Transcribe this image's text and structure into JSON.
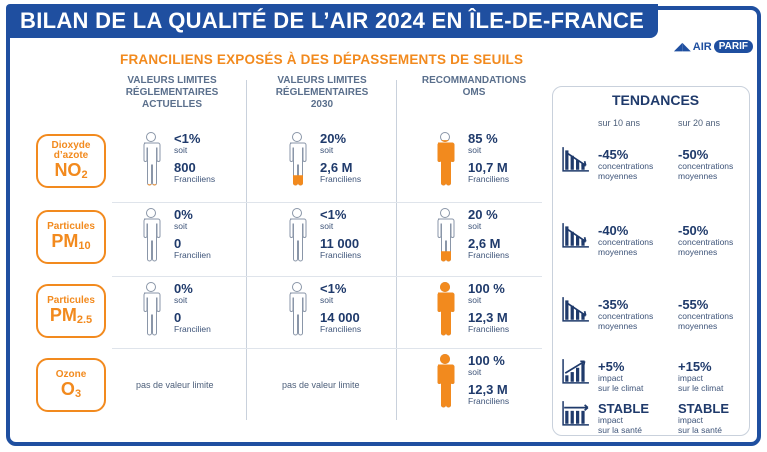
{
  "title": "BILAN DE LA QUALITÉ DE L’AIR 2024 EN ÎLE-DE-FRANCE",
  "logo": {
    "left": "AIR",
    "right": "PARIF"
  },
  "subtitle": "FRANCILIENS EXPOSÉS À DES DÉPASSEMENTS DE SEUILS",
  "columns": [
    {
      "line1": "VALEURS LIMITES",
      "line2": "RÉGLEMENTAIRES",
      "line3": "ACTUELLES"
    },
    {
      "line1": "VALEURS LIMITES",
      "line2": "RÉGLEMENTAIRES",
      "line3": "2030"
    },
    {
      "line1": "RECOMMANDATIONS",
      "line2": "OMS",
      "line3": ""
    }
  ],
  "pollutants": [
    {
      "small1": "Dioxyde",
      "small2": "d’azote",
      "big": "NO",
      "sub": "2"
    },
    {
      "small1": "Particules",
      "small2": "",
      "big": "PM",
      "sub": "10"
    },
    {
      "small1": "Particules",
      "small2": "",
      "big": "PM",
      "sub": "2.5"
    },
    {
      "small1": "Ozone",
      "small2": "",
      "big": "O",
      "sub": "3"
    }
  ],
  "cells": [
    [
      {
        "pct": "<1%",
        "soit": "soit",
        "num": "800",
        "lab": "Franciliens",
        "fill": 0.03
      },
      {
        "pct": "20%",
        "soit": "soit",
        "num": "2,6 M",
        "lab": "Franciliens",
        "fill": 0.2
      },
      {
        "pct": "85 %",
        "soit": "soit",
        "num": "10,7 M",
        "lab": "Franciliens",
        "fill": 0.85
      }
    ],
    [
      {
        "pct": "0%",
        "soit": "soit",
        "num": "0",
        "lab": "Francilien",
        "fill": 0
      },
      {
        "pct": "<1%",
        "soit": "soit",
        "num": "11 000",
        "lab": "Franciliens",
        "fill": 0.01
      },
      {
        "pct": "20 %",
        "soit": "soit",
        "num": "2,6 M",
        "lab": "Franciliens",
        "fill": 0.2
      }
    ],
    [
      {
        "pct": "0%",
        "soit": "soit",
        "num": "0",
        "lab": "Francilien",
        "fill": 0
      },
      {
        "pct": "<1%",
        "soit": "soit",
        "num": "14 000",
        "lab": "Franciliens",
        "fill": 0.01
      },
      {
        "pct": "100 %",
        "soit": "soit",
        "num": "12,3 M",
        "lab": "Franciliens",
        "fill": 1
      }
    ],
    [
      {
        "nolimit": "pas de valeur limite"
      },
      {
        "nolimit": "pas de valeur limite"
      },
      {
        "pct": "100 %",
        "soit": "soit",
        "num": "12,3 M",
        "lab": "Franciliens",
        "fill": 1
      }
    ]
  ],
  "trends": {
    "title": "TENDANCES",
    "sub10": "sur 10 ans",
    "sub20": "sur 20 ans",
    "rows": [
      {
        "icon": "decline-chart-icon",
        "v10": "-45%",
        "d10a": "concentrations",
        "d10b": "moyennes",
        "v20": "-50%",
        "d20a": "concentrations",
        "d20b": "moyennes"
      },
      {
        "icon": "decline-chart-icon",
        "v10": "-40%",
        "d10a": "concentrations",
        "d10b": "moyennes",
        "v20": "-50%",
        "d20a": "concentrations",
        "d20b": "moyennes"
      },
      {
        "icon": "decline-chart-icon",
        "v10": "-35%",
        "d10a": "concentrations",
        "d10b": "moyennes",
        "v20": "-55%",
        "d20a": "concentrations",
        "d20b": "moyennes"
      },
      {
        "icon": "rise-chart-icon",
        "v10": "+5%",
        "d10a": "impact",
        "d10b": "sur le climat",
        "v20": "+15%",
        "d20a": "impact",
        "d20b": "sur le climat"
      },
      {
        "icon": "stable-chart-icon",
        "v10": "STABLE",
        "d10a": "impact",
        "d10b": "sur la santé",
        "v20": "STABLE",
        "d20a": "impact",
        "d20b": "sur la santé"
      }
    ]
  },
  "colors": {
    "navy": "#1f4fa0",
    "orange": "#f28a1e",
    "text": "#1f3a6b"
  }
}
